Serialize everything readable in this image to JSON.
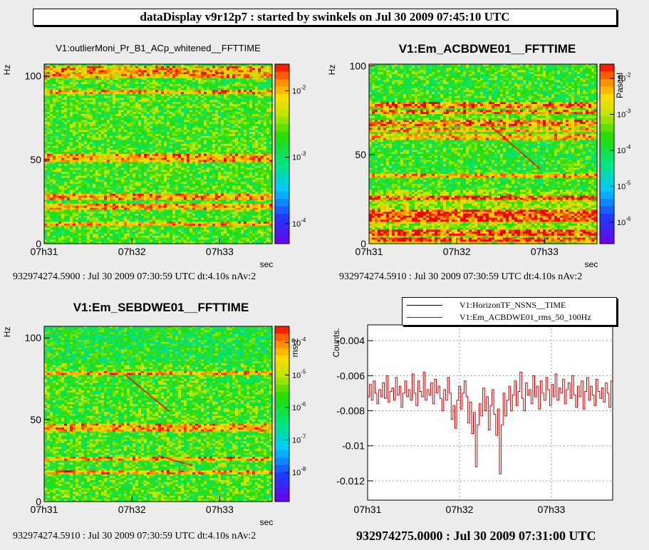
{
  "header": {
    "title": "dataDisplay v9r12p7 : started by swinkels on Jul 30 2009 07:45:10 UTC"
  },
  "chart_data": [
    {
      "type": "heatmap",
      "title": "V1:outlierMoni_Pr_B1_ACp_whitened__FFTTIME",
      "ylabel": "Hz",
      "xlabel": "sec",
      "x_ticks": [
        "07h31",
        "07h32",
        "07h33"
      ],
      "y_ticks": [
        0,
        50,
        100
      ],
      "ylim": [
        0,
        107
      ],
      "colorbar_ticks": [
        "10^-2",
        "10^-3",
        "10^-4"
      ],
      "colorbar_label": "",
      "colorbar_log_range": [
        -4.3,
        -1.6
      ],
      "footer": "932974274.5900 : Jul 30 2009 07:30:59 UTC dt:4.10s nAv:2"
    },
    {
      "type": "heatmap",
      "title": "V1:Em_ACBDWE01__FFTTIME",
      "ylabel": "Hz",
      "xlabel": "sec",
      "x_ticks": [
        "07h31",
        "07h32",
        "07h33"
      ],
      "y_ticks": [
        0,
        50,
        100
      ],
      "ylim": [
        0,
        101
      ],
      "colorbar_ticks": [
        "10^-2",
        "10^-3",
        "10^-4",
        "10^-5",
        "10^-6"
      ],
      "colorbar_label": "Pascal",
      "colorbar_log_range": [
        -6.6,
        -1.6
      ],
      "footer": "932974274.5910 : Jul 30 2009 07:30:59 UTC dt:4.10s nAv:2"
    },
    {
      "type": "heatmap",
      "title": "V1:Em_SEBDWE01__FFTTIME",
      "ylabel": "Hz",
      "xlabel": "sec",
      "x_ticks": [
        "07h31",
        "07h32",
        "07h33"
      ],
      "y_ticks": [
        0,
        50,
        100
      ],
      "ylim": [
        0,
        107
      ],
      "colorbar_ticks": [
        "10^-4",
        "10^-5",
        "10^-6",
        "10^-7",
        "10^-8"
      ],
      "colorbar_label": "ms-2",
      "colorbar_log_range": [
        -8.9,
        -3.5
      ],
      "footer": "932974274.5910 : Jul 30 2009 07:30:59 UTC dt:4.10s nAv:2"
    },
    {
      "type": "line",
      "title": "",
      "ylabel": "Counts.",
      "xlabel": "",
      "x_ticks": [
        "07h31",
        "07h32",
        "07h33"
      ],
      "y_ticks": [
        -0.012,
        -0.01,
        -0.008,
        -0.006,
        -0.004
      ],
      "ylim": [
        -0.0131,
        -0.0031
      ],
      "grid": true,
      "legend": [
        "V1:HorizonTF_NSNS__TIME",
        "V1:Em_ACBDWE01_rms_50_100Hz"
      ],
      "series": [
        {
          "name": "V1:HorizonTF_NSNS__TIME",
          "color": "#000000",
          "values": []
        },
        {
          "name": "V1:Em_ACBDWE01_rms_50_100Hz",
          "color": "#cc0000",
          "values": [
            -0.0072,
            -0.0065,
            -0.0074,
            -0.0063,
            -0.007,
            -0.0076,
            -0.0068,
            -0.0072,
            -0.0064,
            -0.0073,
            -0.006,
            -0.0075,
            -0.0069,
            -0.0067,
            -0.0074,
            -0.0061,
            -0.0071,
            -0.0066,
            -0.0078,
            -0.007,
            -0.0063,
            -0.0072,
            -0.0068,
            -0.0074,
            -0.0059,
            -0.007,
            -0.0077,
            -0.0063,
            -0.0069,
            -0.0072,
            -0.0058,
            -0.0074,
            -0.0068,
            -0.0071,
            -0.0064,
            -0.0076,
            -0.0062,
            -0.007,
            -0.0066,
            -0.0073,
            -0.008,
            -0.0068,
            -0.0074,
            -0.0061,
            -0.007,
            -0.0085,
            -0.0077,
            -0.009,
            -0.0074,
            -0.0066,
            -0.0079,
            -0.007,
            -0.0063,
            -0.0072,
            -0.0087,
            -0.0075,
            -0.0093,
            -0.0081,
            -0.0112,
            -0.0088,
            -0.0076,
            -0.0083,
            -0.0067,
            -0.008,
            -0.0072,
            -0.0091,
            -0.0077,
            -0.0068,
            -0.0082,
            -0.0094,
            -0.0079,
            -0.0116,
            -0.0088,
            -0.007,
            -0.0083,
            -0.0074,
            -0.0066,
            -0.008,
            -0.0071,
            -0.0063,
            -0.0077,
            -0.0069,
            -0.0058,
            -0.0073,
            -0.008,
            -0.0064,
            -0.0071,
            -0.0068,
            -0.0076,
            -0.006,
            -0.0072,
            -0.0066,
            -0.0079,
            -0.0063,
            -0.007,
            -0.0074,
            -0.0061,
            -0.0068,
            -0.0077,
            -0.0065,
            -0.0072,
            -0.0059,
            -0.0074,
            -0.0067,
            -0.007,
            -0.0062,
            -0.0076,
            -0.0068,
            -0.0064,
            -0.0073,
            -0.006,
            -0.0071,
            -0.0078,
            -0.0066,
            -0.0072,
            -0.0063,
            -0.0079,
            -0.0069,
            -0.0061,
            -0.0074,
            -0.0066,
            -0.0071,
            -0.0077,
            -0.0062,
            -0.0069,
            -0.0073,
            -0.0067,
            -0.0075,
            -0.0064,
            -0.007,
            -0.0078,
            -0.0063
          ]
        }
      ],
      "footer": "932974275.0000 : Jul 30 2009 07:31:00 UTC"
    }
  ]
}
